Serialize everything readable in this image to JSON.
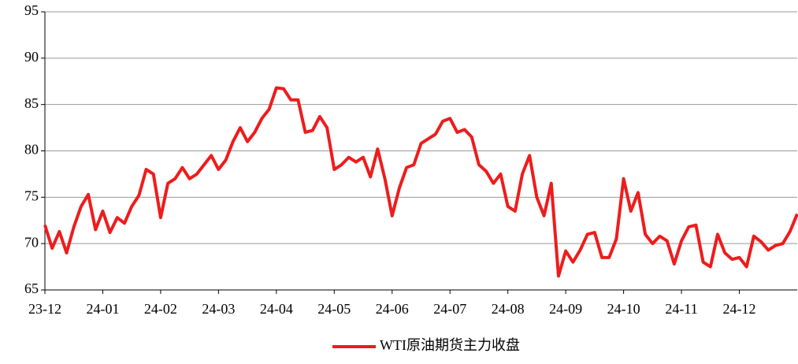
{
  "chart_data": {
    "type": "line",
    "categories": [
      "23-12",
      null,
      null,
      null,
      null,
      null,
      null,
      null,
      "24-01",
      null,
      null,
      null,
      null,
      null,
      null,
      null,
      "24-02",
      null,
      null,
      null,
      null,
      null,
      null,
      null,
      "24-03",
      null,
      null,
      null,
      null,
      null,
      null,
      null,
      "24-04",
      null,
      null,
      null,
      null,
      null,
      null,
      null,
      "24-05",
      null,
      null,
      null,
      null,
      null,
      null,
      null,
      "24-06",
      null,
      null,
      null,
      null,
      null,
      null,
      null,
      "24-07",
      null,
      null,
      null,
      null,
      null,
      null,
      null,
      "24-08",
      null,
      null,
      null,
      null,
      null,
      null,
      null,
      "24-09",
      null,
      null,
      null,
      null,
      null,
      null,
      null,
      "24-10",
      null,
      null,
      null,
      null,
      null,
      null,
      null,
      "24-11",
      null,
      null,
      null,
      null,
      null,
      null,
      null,
      "24-12",
      null,
      null,
      null,
      null,
      null,
      null,
      null,
      null
    ],
    "series": [
      {
        "name": "WTI原油期货主力收盘",
        "color": "#ee1c1c",
        "values": [
          72,
          69.5,
          71.3,
          69,
          71.8,
          74,
          75.3,
          71.5,
          73.5,
          71.2,
          72.8,
          72.2,
          74,
          75.2,
          78,
          77.5,
          72.8,
          76.5,
          77,
          78.2,
          77,
          77.5,
          78.5,
          79.5,
          78,
          79,
          81,
          82.5,
          81,
          82,
          83.5,
          84.5,
          86.8,
          86.7,
          85.5,
          85.5,
          82,
          82.2,
          83.7,
          82.5,
          78,
          78.5,
          79.3,
          78.8,
          79.3,
          77.2,
          80.2,
          77,
          73,
          76,
          78.2,
          78.5,
          80.8,
          81.3,
          81.8,
          83.2,
          83.5,
          82,
          82.3,
          81.5,
          78.5,
          77.8,
          76.5,
          77.5,
          74,
          73.5,
          77.5,
          79.5,
          75,
          73,
          76.5,
          66.5,
          69.2,
          68,
          69.3,
          71,
          71.2,
          68.5,
          68.5,
          70.5,
          77,
          73.5,
          75.5,
          71,
          70,
          70.8,
          70.3,
          67.8,
          70.3,
          71.8,
          72,
          68,
          67.5,
          71,
          69,
          68.3,
          68.5,
          67.5,
          70.8,
          70.2,
          69.3,
          69.8,
          70,
          71.3,
          73.2
        ]
      }
    ],
    "ylim": [
      65,
      95
    ],
    "yticks": [
      65,
      70,
      75,
      80,
      85,
      90,
      95
    ],
    "grid": true,
    "legend": "bottom"
  }
}
